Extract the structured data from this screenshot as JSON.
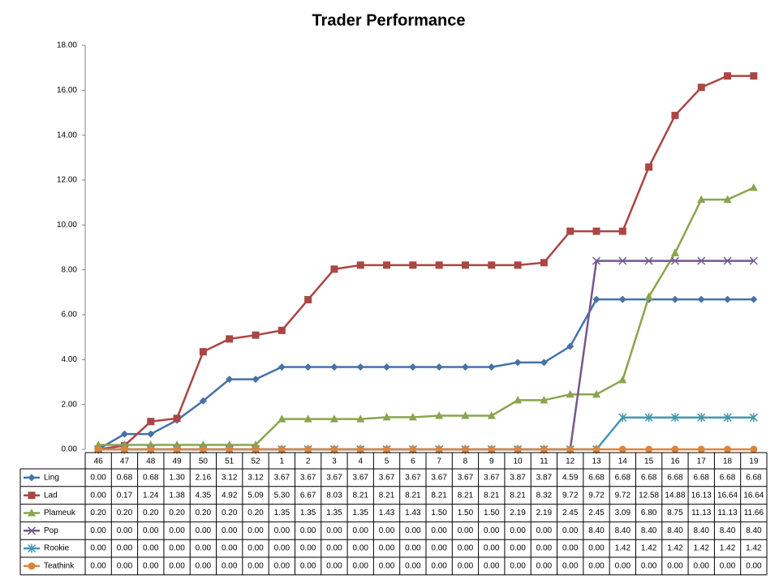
{
  "chart_data": {
    "type": "line",
    "title": "Trader Performance",
    "categories": [
      "46",
      "47",
      "48",
      "49",
      "50",
      "51",
      "52",
      "1",
      "2",
      "3",
      "4",
      "5",
      "6",
      "7",
      "8",
      "9",
      "10",
      "11",
      "12",
      "13",
      "14",
      "15",
      "16",
      "17",
      "18",
      "19"
    ],
    "ylim": [
      0,
      18
    ],
    "yticks": [
      {
        "value": 0,
        "label": "0.00"
      },
      {
        "value": 2,
        "label": "2.00"
      },
      {
        "value": 4,
        "label": "4.00"
      },
      {
        "value": 6,
        "label": "6.00"
      },
      {
        "value": 8,
        "label": "8.00"
      },
      {
        "value": 10,
        "label": "10.00"
      },
      {
        "value": 12,
        "label": "12.00"
      },
      {
        "value": 14,
        "label": "14.00"
      },
      {
        "value": 16,
        "label": "16.00"
      },
      {
        "value": 18,
        "label": "18.00"
      }
    ],
    "grid": false,
    "series": [
      {
        "name": "Ling",
        "color": "#4572a7",
        "marker": "diamond",
        "values": [
          0,
          0.68,
          0.68,
          1.3,
          2.16,
          3.12,
          3.12,
          3.67,
          3.67,
          3.67,
          3.67,
          3.67,
          3.67,
          3.67,
          3.67,
          3.67,
          3.87,
          3.87,
          4.59,
          6.68,
          6.68,
          6.68,
          6.68,
          6.68,
          6.68,
          6.68
        ],
        "value_labels": [
          "0.00",
          "0.68",
          "0.68",
          "1.30",
          "2.16",
          "3.12",
          "3.12",
          "3.67",
          "3.67",
          "3.67",
          "3.67",
          "3.67",
          "3.67",
          "3.67",
          "3.67",
          "3.67",
          "3.87",
          "3.87",
          "4.59",
          "6.68",
          "6.68",
          "6.68",
          "6.68",
          "6.68",
          "6.68",
          "6.68"
        ]
      },
      {
        "name": "Lad",
        "color": "#aa4643",
        "marker": "square",
        "values": [
          0,
          0.17,
          1.24,
          1.38,
          4.35,
          4.92,
          5.09,
          5.3,
          6.67,
          8.03,
          8.21,
          8.21,
          8.21,
          8.21,
          8.21,
          8.21,
          8.21,
          8.32,
          9.72,
          9.72,
          9.72,
          12.58,
          14.88,
          16.13,
          16.64,
          16.64
        ],
        "value_labels": [
          "0.00",
          "0.17",
          "1.24",
          "1.38",
          "4.35",
          "4.92",
          "5.09",
          "5.30",
          "6.67",
          "8.03",
          "8.21",
          "8.21",
          "8.21",
          "8.21",
          "8.21",
          "8.21",
          "8.21",
          "8.32",
          "9.72",
          "9.72",
          "9.72",
          "12.58",
          "14.88",
          "16.13",
          "16.64",
          "16.64"
        ]
      },
      {
        "name": "Plameuk",
        "color": "#89a54e",
        "marker": "triangle",
        "values": [
          0.2,
          0.2,
          0.2,
          0.2,
          0.2,
          0.2,
          0.2,
          1.35,
          1.35,
          1.35,
          1.35,
          1.43,
          1.43,
          1.5,
          1.5,
          1.5,
          2.19,
          2.19,
          2.45,
          2.45,
          3.09,
          6.8,
          8.75,
          11.13,
          11.13,
          11.66
        ],
        "value_labels": [
          "0.20",
          "0.20",
          "0.20",
          "0.20",
          "0.20",
          "0.20",
          "0.20",
          "1.35",
          "1.35",
          "1.35",
          "1.35",
          "1.43",
          "1.43",
          "1.50",
          "1.50",
          "1.50",
          "2.19",
          "2.19",
          "2.45",
          "2.45",
          "3.09",
          "6.80",
          "8.75",
          "11.13",
          "11.13",
          "11.66"
        ]
      },
      {
        "name": "Pop",
        "color": "#71588f",
        "marker": "x",
        "values": [
          0,
          0,
          0,
          0,
          0,
          0,
          0,
          0,
          0,
          0,
          0,
          0,
          0,
          0,
          0,
          0,
          0,
          0,
          0,
          8.4,
          8.4,
          8.4,
          8.4,
          8.4,
          8.4,
          8.4
        ],
        "value_labels": [
          "0.00",
          "0.00",
          "0.00",
          "0.00",
          "0.00",
          "0.00",
          "0.00",
          "0.00",
          "0.00",
          "0.00",
          "0.00",
          "0.00",
          "0.00",
          "0.00",
          "0.00",
          "0.00",
          "0.00",
          "0.00",
          "0.00",
          "8.40",
          "8.40",
          "8.40",
          "8.40",
          "8.40",
          "8.40",
          "8.40"
        ]
      },
      {
        "name": "Rookie",
        "color": "#4198af",
        "marker": "star",
        "values": [
          0,
          0,
          0,
          0,
          0,
          0,
          0,
          0,
          0,
          0,
          0,
          0,
          0,
          0,
          0,
          0,
          0,
          0,
          0,
          0,
          1.42,
          1.42,
          1.42,
          1.42,
          1.42,
          1.42
        ],
        "value_labels": [
          "0.00",
          "0.00",
          "0.00",
          "0.00",
          "0.00",
          "0.00",
          "0.00",
          "0.00",
          "0.00",
          "0.00",
          "0.00",
          "0.00",
          "0.00",
          "0.00",
          "0.00",
          "0.00",
          "0.00",
          "0.00",
          "0.00",
          "0.00",
          "1.42",
          "1.42",
          "1.42",
          "1.42",
          "1.42",
          "1.42"
        ]
      },
      {
        "name": "Teathink",
        "color": "#db843d",
        "marker": "circle",
        "values": [
          0,
          0,
          0,
          0,
          0,
          0,
          0,
          0,
          0,
          0,
          0,
          0,
          0,
          0,
          0,
          0,
          0,
          0,
          0,
          0,
          0,
          0,
          0,
          0,
          0,
          0
        ],
        "value_labels": [
          "0.00",
          "0.00",
          "0.00",
          "0.00",
          "0.00",
          "0.00",
          "0.00",
          "0.00",
          "0.00",
          "0.00",
          "0.00",
          "0.00",
          "0.00",
          "0.00",
          "0.00",
          "0.00",
          "0.00",
          "0.00",
          "0.00",
          "0.00",
          "0.00",
          "0.00",
          "0.00",
          "0.00",
          "0.00",
          "0.00"
        ]
      }
    ]
  }
}
